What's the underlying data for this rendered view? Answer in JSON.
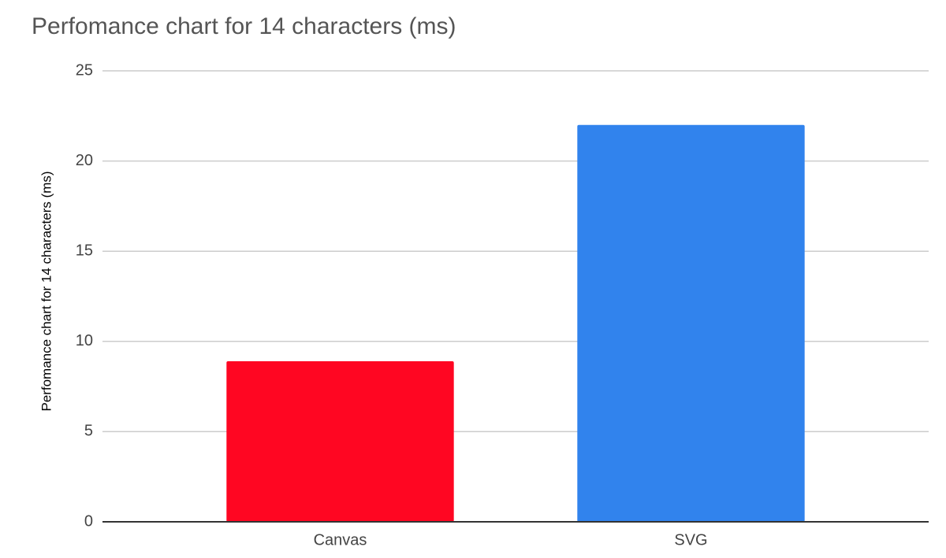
{
  "chart_data": {
    "type": "bar",
    "title": "Perfomance chart for 14 characters (ms)",
    "y_label": "Perfomance chart for 14 characters (ms)",
    "categories": [
      "Canvas",
      "SVG"
    ],
    "values": [
      8.9,
      22
    ],
    "colors": [
      "#ff0622",
      "#3183ed"
    ],
    "ylim": [
      0,
      25
    ],
    "yticks": [
      0,
      5,
      10,
      15,
      20,
      25
    ],
    "grid": true
  }
}
